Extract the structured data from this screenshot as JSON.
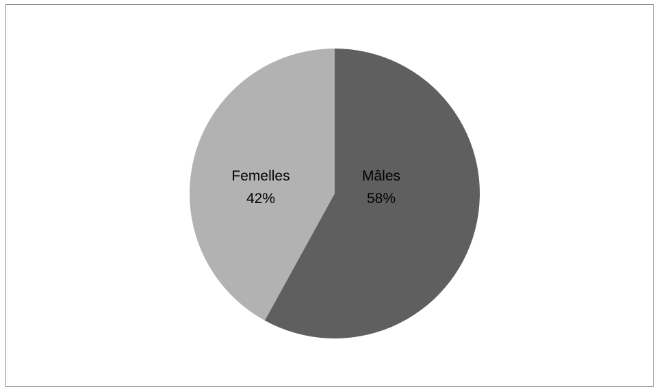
{
  "chart_data": {
    "type": "pie",
    "categories": [
      "Mâles",
      "Femelles"
    ],
    "values": [
      58,
      42
    ],
    "value_labels": [
      "58%",
      "42%"
    ],
    "colors": [
      "#5f5f5f",
      "#b2b2b2"
    ],
    "start_angle_deg": 0,
    "direction": "clockwise",
    "legend": "none",
    "title": ""
  }
}
